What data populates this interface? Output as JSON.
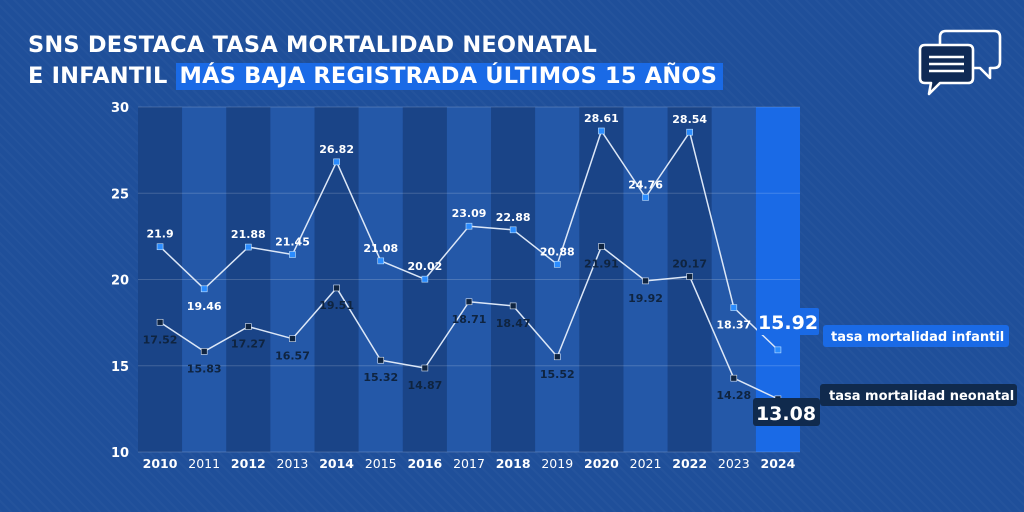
{
  "header": {
    "title_line1": "SNS DESTACA TASA MORTALIDAD NEONATAL",
    "title_line2_plain": "E INFANTIL ",
    "title_line2_highlight": "MÁS BAJA REGISTRADA ÚLTIMOS 15 AÑOS",
    "icon": "chat-bubbles-icon"
  },
  "colors": {
    "background": "#1f4f9a",
    "band_dark": "#1a4487",
    "band_light": "#2458a8",
    "highlight": "#1a6ae6",
    "infant_marker": "#2a8cff",
    "neonatal_marker": "#0f2440",
    "line": "#dce7f7",
    "neonatal_badge": "#102a4d"
  },
  "chart_data": {
    "type": "line",
    "x": [
      "2010",
      "2011",
      "2012",
      "2013",
      "2014",
      "2015",
      "2016",
      "2017",
      "2018",
      "2019",
      "2020",
      "2021",
      "2022",
      "2023",
      "2024"
    ],
    "bold_years": [
      "2010",
      "2012",
      "2014",
      "2016",
      "2018",
      "2020",
      "2022",
      "2024"
    ],
    "highlight_year": "2024",
    "ylim": [
      10,
      30
    ],
    "yticks": [
      10,
      15,
      20,
      25,
      30
    ],
    "xlabel": "",
    "ylabel": "",
    "series": [
      {
        "name": "tasa mortalidad infantil",
        "color": "#2a8cff",
        "values": [
          21.9,
          19.46,
          21.88,
          21.45,
          26.82,
          21.08,
          20.02,
          23.09,
          22.88,
          20.88,
          28.61,
          24.76,
          28.54,
          18.37,
          15.92
        ],
        "labels": [
          "21.9",
          "19.46",
          "21.88",
          "21.45",
          "26.82",
          "21.08",
          "20.02",
          "23.09",
          "22.88",
          "20.88",
          "28.61",
          "24.76",
          "28.54",
          "18.37",
          "15.92"
        ]
      },
      {
        "name": "tasa mortalidad neonatal",
        "color": "#0f2440",
        "values": [
          17.52,
          15.83,
          17.27,
          16.57,
          19.51,
          15.32,
          14.87,
          18.71,
          18.47,
          15.52,
          21.91,
          19.92,
          20.17,
          14.28,
          13.08
        ],
        "labels": [
          "17.52",
          "15.83",
          "17.27",
          "16.57",
          "19.51",
          "15.32",
          "14.87",
          "18.71",
          "18.47",
          "15.52",
          "21.91",
          "19.92",
          "20.17",
          "14.28",
          "13.08"
        ]
      }
    ]
  }
}
